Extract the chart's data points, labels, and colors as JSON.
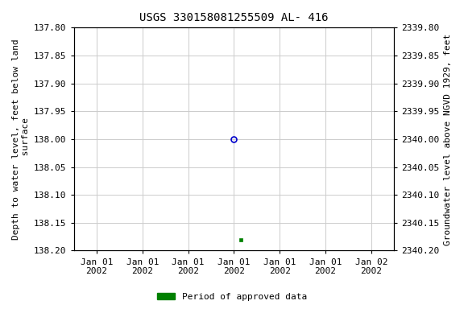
{
  "title": "USGS 330158081255509 AL- 416",
  "ylabel_left": "Depth to water level, feet below land\n surface",
  "ylabel_right": "Groundwater level above NGVD 1929, feet",
  "ylim_left": [
    137.8,
    138.2
  ],
  "ylim_right": [
    2340.2,
    2339.8
  ],
  "yticks_left": [
    137.8,
    137.85,
    137.9,
    137.95,
    138.0,
    138.05,
    138.1,
    138.15,
    138.2
  ],
  "yticks_right": [
    2340.2,
    2340.15,
    2340.1,
    2340.05,
    2340.0,
    2339.95,
    2339.9,
    2339.85,
    2339.8
  ],
  "point_open_depth": 138.0,
  "point_filled_depth": 138.18,
  "open_circle_color": "#0000cc",
  "filled_square_color": "#008000",
  "legend_label": "Period of approved data",
  "legend_color": "#008000",
  "grid_color": "#cccccc",
  "background_color": "#ffffff",
  "title_fontsize": 10,
  "axis_label_fontsize": 8,
  "tick_fontsize": 8,
  "font_family": "monospace"
}
